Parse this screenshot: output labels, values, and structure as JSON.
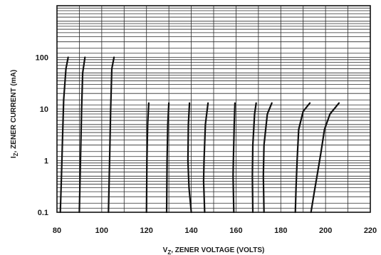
{
  "chart_data": {
    "type": "line",
    "title": "",
    "xlabel_main": "V",
    "xlabel_sub": "Z",
    "xlabel_rest": ", ZENER VOLTAGE (VOLTS)",
    "ylabel_main": "I",
    "ylabel_sub": "Z",
    "ylabel_rest": ", ZENER CURRENT (mA)",
    "xlim": [
      80,
      220
    ],
    "ylim": [
      0.1,
      1000
    ],
    "yscale": "log",
    "grid": true,
    "x_ticks": [
      80,
      100,
      120,
      140,
      160,
      180,
      200,
      220
    ],
    "x_tick_labels": [
      "80",
      "100",
      "120",
      "140",
      "160",
      "180",
      "200",
      "220"
    ],
    "y_ticks": [
      0.1,
      1,
      10,
      100
    ],
    "y_tick_labels": [
      "0.1",
      "1",
      "10",
      "100"
    ],
    "series": [
      {
        "points": [
          [
            81.5,
            0.1
          ],
          [
            82,
            0.5
          ],
          [
            82.5,
            3
          ],
          [
            83,
            15
          ],
          [
            84,
            60
          ],
          [
            85,
            100
          ]
        ]
      },
      {
        "points": [
          [
            90,
            0.1
          ],
          [
            90.5,
            1
          ],
          [
            91,
            10
          ],
          [
            91.5,
            50
          ],
          [
            92.5,
            100
          ]
        ]
      },
      {
        "points": [
          [
            103,
            0.1
          ],
          [
            103.5,
            1
          ],
          [
            104,
            10
          ],
          [
            104.5,
            60
          ],
          [
            105.5,
            100
          ]
        ]
      },
      {
        "points": [
          [
            120,
            0.1
          ],
          [
            120.2,
            1
          ],
          [
            120.5,
            5
          ],
          [
            121,
            13
          ]
        ]
      },
      {
        "points": [
          [
            129,
            0.1
          ],
          [
            129.2,
            1
          ],
          [
            129.5,
            5
          ],
          [
            130,
            13
          ]
        ]
      },
      {
        "points": [
          [
            140,
            0.1
          ],
          [
            139,
            0.3
          ],
          [
            138.5,
            1
          ],
          [
            138.7,
            5
          ],
          [
            139.2,
            13
          ]
        ]
      },
      {
        "points": [
          [
            146,
            0.1
          ],
          [
            145.5,
            0.4
          ],
          [
            145.7,
            1
          ],
          [
            146.3,
            5
          ],
          [
            147.5,
            13
          ]
        ]
      },
      {
        "points": [
          [
            159,
            0.1
          ],
          [
            158.7,
            0.5
          ],
          [
            158.8,
            1
          ],
          [
            159.2,
            5
          ],
          [
            159.5,
            13
          ]
        ]
      },
      {
        "points": [
          [
            167.5,
            0.1
          ],
          [
            167.3,
            0.5
          ],
          [
            167.5,
            2
          ],
          [
            168.3,
            8
          ],
          [
            169,
            13
          ]
        ]
      },
      {
        "points": [
          [
            172.5,
            0.1
          ],
          [
            172.2,
            0.5
          ],
          [
            172.5,
            2
          ],
          [
            174,
            8
          ],
          [
            176,
            13
          ]
        ]
      },
      {
        "points": [
          [
            186.5,
            0.1
          ],
          [
            186.8,
            0.3
          ],
          [
            187.3,
            1
          ],
          [
            188,
            4
          ],
          [
            190,
            9
          ],
          [
            193,
            13
          ]
        ]
      },
      {
        "points": [
          [
            193.5,
            0.1
          ],
          [
            195,
            0.25
          ],
          [
            196.5,
            0.6
          ],
          [
            198,
            1.5
          ],
          [
            199.5,
            4
          ],
          [
            202,
            8
          ],
          [
            206,
            13
          ]
        ]
      }
    ]
  }
}
